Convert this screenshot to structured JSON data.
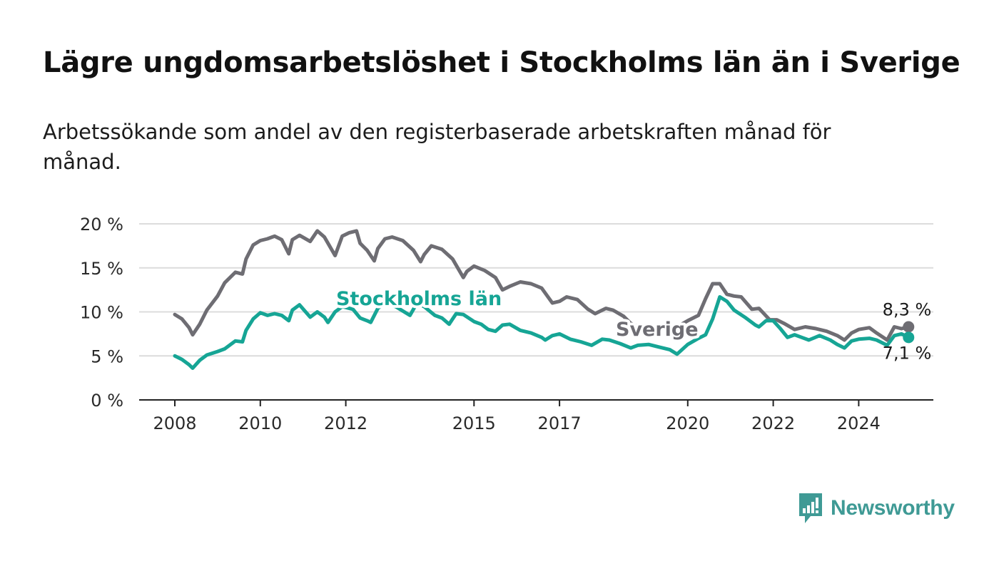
{
  "title": "Lägre ungdomsarbetslöshet i Stockholms län än i Sverige",
  "subtitle": "Arbetssökande som andel av den registerbaserade arbetskraften månad för månad.",
  "brand": {
    "name": "Newsworthy",
    "color": "#3f9a95"
  },
  "chart_data": {
    "type": "line",
    "grid": true,
    "ylim": [
      0,
      20
    ],
    "yticks": [
      0,
      5,
      10,
      15,
      20
    ],
    "ytick_labels": [
      "0 %",
      "5 %",
      "10 %",
      "15 %",
      "20 %"
    ],
    "xlim": [
      "2008-01",
      "2024-12"
    ],
    "xticks": [
      "2008-01",
      "2010-01",
      "2012-01",
      "2015-01",
      "2017-01",
      "2020-01",
      "2022-01",
      "2024-01"
    ],
    "xtick_labels": [
      "2008",
      "2010",
      "2012",
      "2015",
      "2017",
      "2020",
      "2022",
      "2024"
    ],
    "series": [
      {
        "name": "Sverige",
        "color": "#6e6d73",
        "end_label": "8,3 %",
        "points": [
          [
            "2008-01",
            9.7
          ],
          [
            "2008-03",
            9.2
          ],
          [
            "2008-05",
            8.2
          ],
          [
            "2008-06",
            7.4
          ],
          [
            "2008-08",
            8.6
          ],
          [
            "2008-10",
            10.2
          ],
          [
            "2009-01",
            11.8
          ],
          [
            "2009-03",
            13.3
          ],
          [
            "2009-06",
            14.5
          ],
          [
            "2009-08",
            14.3
          ],
          [
            "2009-09",
            16.0
          ],
          [
            "2009-11",
            17.6
          ],
          [
            "2010-01",
            18.1
          ],
          [
            "2010-03",
            18.3
          ],
          [
            "2010-05",
            18.6
          ],
          [
            "2010-07",
            18.2
          ],
          [
            "2010-09",
            16.6
          ],
          [
            "2010-10",
            18.2
          ],
          [
            "2010-12",
            18.7
          ],
          [
            "2011-03",
            18.0
          ],
          [
            "2011-05",
            19.2
          ],
          [
            "2011-07",
            18.5
          ],
          [
            "2011-10",
            16.4
          ],
          [
            "2011-12",
            18.6
          ],
          [
            "2012-02",
            19.0
          ],
          [
            "2012-04",
            19.2
          ],
          [
            "2012-05",
            17.8
          ],
          [
            "2012-07",
            17.0
          ],
          [
            "2012-09",
            15.8
          ],
          [
            "2012-10",
            17.2
          ],
          [
            "2012-12",
            18.3
          ],
          [
            "2013-02",
            18.5
          ],
          [
            "2013-05",
            18.1
          ],
          [
            "2013-08",
            17.0
          ],
          [
            "2013-10",
            15.7
          ],
          [
            "2013-11",
            16.5
          ],
          [
            "2014-01",
            17.5
          ],
          [
            "2014-04",
            17.1
          ],
          [
            "2014-07",
            16.0
          ],
          [
            "2014-10",
            13.9
          ],
          [
            "2014-11",
            14.6
          ],
          [
            "2015-01",
            15.2
          ],
          [
            "2015-04",
            14.7
          ],
          [
            "2015-07",
            13.9
          ],
          [
            "2015-09",
            12.5
          ],
          [
            "2015-11",
            12.9
          ],
          [
            "2016-02",
            13.4
          ],
          [
            "2016-05",
            13.2
          ],
          [
            "2016-08",
            12.7
          ],
          [
            "2016-11",
            11.0
          ],
          [
            "2017-01",
            11.2
          ],
          [
            "2017-03",
            11.7
          ],
          [
            "2017-06",
            11.4
          ],
          [
            "2017-09",
            10.3
          ],
          [
            "2017-11",
            9.8
          ],
          [
            "2018-02",
            10.4
          ],
          [
            "2018-04",
            10.2
          ],
          [
            "2018-07",
            9.5
          ],
          [
            "2018-09",
            8.7
          ],
          [
            "2018-11",
            8.3
          ],
          [
            "2019-01",
            8.1
          ],
          [
            "2019-04",
            8.3
          ],
          [
            "2019-07",
            8.0
          ],
          [
            "2019-10",
            8.3
          ],
          [
            "2020-01",
            9.0
          ],
          [
            "2020-04",
            9.6
          ],
          [
            "2020-06",
            11.5
          ],
          [
            "2020-08",
            13.2
          ],
          [
            "2020-10",
            13.2
          ],
          [
            "2020-12",
            12.0
          ],
          [
            "2021-02",
            11.8
          ],
          [
            "2021-04",
            11.7
          ],
          [
            "2021-07",
            10.3
          ],
          [
            "2021-09",
            10.4
          ],
          [
            "2021-12",
            9.1
          ],
          [
            "2022-02",
            9.1
          ],
          [
            "2022-04",
            8.7
          ],
          [
            "2022-07",
            8.0
          ],
          [
            "2022-10",
            8.3
          ],
          [
            "2023-01",
            8.1
          ],
          [
            "2023-04",
            7.8
          ],
          [
            "2023-07",
            7.3
          ],
          [
            "2023-09",
            6.8
          ],
          [
            "2023-11",
            7.6
          ],
          [
            "2024-01",
            8.0
          ],
          [
            "2024-04",
            8.2
          ],
          [
            "2024-06",
            7.6
          ],
          [
            "2024-09",
            6.8
          ],
          [
            "2024-11",
            8.3
          ],
          [
            "2025-01",
            8.1
          ],
          [
            "2025-03",
            8.3
          ]
        ]
      },
      {
        "name": "Stockholms län",
        "color": "#16a595",
        "end_label": "7,1 %",
        "points": [
          [
            "2008-01",
            5.0
          ],
          [
            "2008-03",
            4.6
          ],
          [
            "2008-05",
            4.0
          ],
          [
            "2008-06",
            3.6
          ],
          [
            "2008-08",
            4.5
          ],
          [
            "2008-10",
            5.1
          ],
          [
            "2009-01",
            5.5
          ],
          [
            "2009-03",
            5.8
          ],
          [
            "2009-06",
            6.7
          ],
          [
            "2009-08",
            6.6
          ],
          [
            "2009-09",
            7.9
          ],
          [
            "2009-11",
            9.2
          ],
          [
            "2010-01",
            9.9
          ],
          [
            "2010-03",
            9.6
          ],
          [
            "2010-05",
            9.8
          ],
          [
            "2010-07",
            9.6
          ],
          [
            "2010-09",
            9.0
          ],
          [
            "2010-10",
            10.2
          ],
          [
            "2010-12",
            10.8
          ],
          [
            "2011-03",
            9.4
          ],
          [
            "2011-05",
            10.0
          ],
          [
            "2011-07",
            9.4
          ],
          [
            "2011-08",
            8.8
          ],
          [
            "2011-10",
            10.0
          ],
          [
            "2011-12",
            10.6
          ],
          [
            "2012-03",
            10.3
          ],
          [
            "2012-05",
            9.3
          ],
          [
            "2012-07",
            9.0
          ],
          [
            "2012-08",
            8.8
          ],
          [
            "2012-10",
            10.4
          ],
          [
            "2012-12",
            11.0
          ],
          [
            "2013-03",
            10.6
          ],
          [
            "2013-05",
            10.1
          ],
          [
            "2013-07",
            9.6
          ],
          [
            "2013-09",
            11.0
          ],
          [
            "2013-11",
            10.6
          ],
          [
            "2014-02",
            9.6
          ],
          [
            "2014-04",
            9.3
          ],
          [
            "2014-06",
            8.6
          ],
          [
            "2014-08",
            9.8
          ],
          [
            "2014-10",
            9.7
          ],
          [
            "2015-01",
            8.9
          ],
          [
            "2015-03",
            8.6
          ],
          [
            "2015-05",
            8.0
          ],
          [
            "2015-07",
            7.8
          ],
          [
            "2015-09",
            8.5
          ],
          [
            "2015-11",
            8.6
          ],
          [
            "2016-02",
            7.9
          ],
          [
            "2016-05",
            7.6
          ],
          [
            "2016-08",
            7.1
          ],
          [
            "2016-09",
            6.8
          ],
          [
            "2016-11",
            7.3
          ],
          [
            "2017-01",
            7.5
          ],
          [
            "2017-04",
            6.9
          ],
          [
            "2017-07",
            6.6
          ],
          [
            "2017-10",
            6.2
          ],
          [
            "2018-01",
            6.9
          ],
          [
            "2018-03",
            6.8
          ],
          [
            "2018-06",
            6.4
          ],
          [
            "2018-09",
            5.9
          ],
          [
            "2018-11",
            6.2
          ],
          [
            "2019-02",
            6.3
          ],
          [
            "2019-05",
            6.0
          ],
          [
            "2019-08",
            5.7
          ],
          [
            "2019-10",
            5.2
          ],
          [
            "2020-01",
            6.3
          ],
          [
            "2020-04",
            7.0
          ],
          [
            "2020-06",
            7.4
          ],
          [
            "2020-08",
            9.2
          ],
          [
            "2020-10",
            11.7
          ],
          [
            "2020-12",
            11.2
          ],
          [
            "2021-02",
            10.2
          ],
          [
            "2021-05",
            9.4
          ],
          [
            "2021-08",
            8.5
          ],
          [
            "2021-09",
            8.3
          ],
          [
            "2021-11",
            9.0
          ],
          [
            "2022-01",
            9.0
          ],
          [
            "2022-03",
            8.1
          ],
          [
            "2022-05",
            7.1
          ],
          [
            "2022-07",
            7.4
          ],
          [
            "2022-09",
            7.1
          ],
          [
            "2022-11",
            6.8
          ],
          [
            "2023-02",
            7.3
          ],
          [
            "2023-05",
            6.8
          ],
          [
            "2023-07",
            6.3
          ],
          [
            "2023-09",
            5.9
          ],
          [
            "2023-11",
            6.7
          ],
          [
            "2024-01",
            6.9
          ],
          [
            "2024-04",
            7.0
          ],
          [
            "2024-06",
            6.8
          ],
          [
            "2024-09",
            6.2
          ],
          [
            "2024-11",
            7.3
          ],
          [
            "2025-01",
            7.5
          ],
          [
            "2025-03",
            7.1
          ]
        ]
      }
    ]
  }
}
